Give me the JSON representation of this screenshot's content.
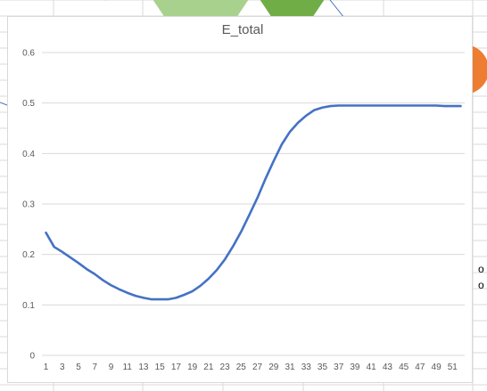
{
  "chart_data": {
    "type": "line",
    "title": "E_total",
    "x": [
      1,
      2,
      3,
      4,
      5,
      6,
      7,
      8,
      9,
      10,
      11,
      12,
      13,
      14,
      15,
      16,
      17,
      18,
      19,
      20,
      21,
      22,
      23,
      24,
      25,
      26,
      27,
      28,
      29,
      30,
      31,
      32,
      33,
      34,
      35,
      36,
      37,
      38,
      39,
      40,
      41,
      42,
      43,
      44,
      45,
      46,
      47,
      48,
      49,
      50,
      51,
      52
    ],
    "xticks": [
      "1",
      "3",
      "5",
      "7",
      "9",
      "11",
      "13",
      "15",
      "17",
      "19",
      "21",
      "23",
      "25",
      "27",
      "29",
      "31",
      "33",
      "35",
      "37",
      "39",
      "41",
      "43",
      "45",
      "47",
      "49",
      "51"
    ],
    "series": [
      {
        "values": [
          0.243,
          0.215,
          0.205,
          0.194,
          0.183,
          0.171,
          0.161,
          0.149,
          0.139,
          0.131,
          0.124,
          0.118,
          0.114,
          0.111,
          0.111,
          0.111,
          0.114,
          0.12,
          0.127,
          0.138,
          0.152,
          0.169,
          0.19,
          0.216,
          0.245,
          0.278,
          0.312,
          0.35,
          0.385,
          0.418,
          0.443,
          0.461,
          0.475,
          0.486,
          0.491,
          0.494,
          0.495,
          0.495,
          0.495,
          0.495,
          0.495,
          0.495,
          0.495,
          0.495,
          0.495,
          0.495,
          0.495,
          0.495,
          0.495,
          0.494,
          0.494,
          0.494
        ],
        "color": "#4472c4"
      }
    ],
    "yticks": [
      "0",
      "0.1",
      "0.2",
      "0.3",
      "0.4",
      "0.5",
      "0.6"
    ],
    "ylim": [
      0,
      0.6
    ],
    "grid": true,
    "legend": "none"
  },
  "colors": {
    "background_shape_light_green": "#a9d18e",
    "background_shape_green": "#70ad47",
    "background_shape_orange": "#ed7d31",
    "spreadsheet_grid": "#d9d9d9",
    "connector_lines": "#4472c4"
  },
  "edge_text": [
    "o",
    "o"
  ]
}
